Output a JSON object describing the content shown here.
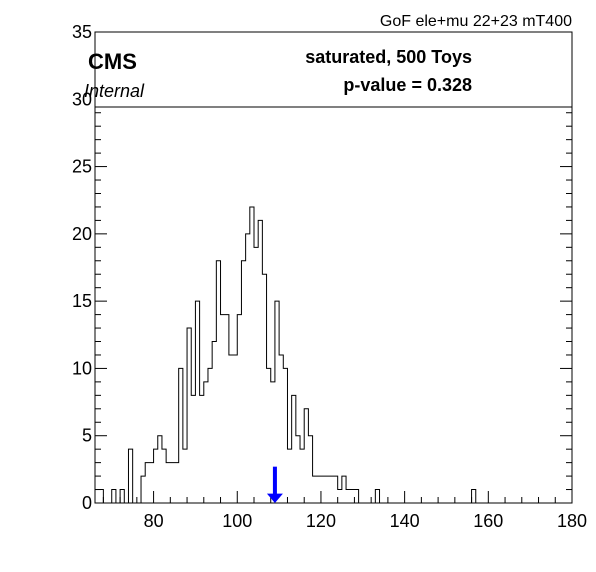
{
  "chart_data": {
    "type": "histogram",
    "title": "GoF ele+mu 22+23 mT400",
    "xlabel": "",
    "ylabel": "",
    "xlim": [
      66,
      180
    ],
    "ylim": [
      0,
      35
    ],
    "bin_width": 1,
    "bins_start": 66,
    "counts": [
      1,
      1,
      0,
      0,
      1,
      0,
      1,
      0,
      4,
      0,
      0,
      2,
      3,
      3,
      4,
      5,
      4,
      3,
      3,
      3,
      10,
      4,
      13,
      8,
      15,
      8,
      9,
      10,
      12,
      18,
      14,
      14,
      11,
      11,
      14,
      18,
      20,
      22,
      19,
      21,
      17,
      10,
      9,
      15,
      11,
      10,
      4,
      8,
      5,
      4,
      7,
      5,
      2,
      2,
      2,
      2,
      2,
      2,
      1,
      2,
      1,
      1,
      1,
      0,
      0,
      0,
      0,
      1,
      0,
      0,
      0,
      0,
      0,
      0,
      0,
      0,
      0,
      0,
      0,
      0,
      0,
      0,
      0,
      0,
      0,
      0,
      0,
      0,
      0,
      0,
      1,
      0,
      0,
      0,
      0,
      0,
      0,
      0,
      0,
      0,
      0,
      0,
      0,
      0,
      0,
      0,
      0,
      0,
      0,
      0,
      0,
      0,
      0,
      0
    ],
    "observed_value": 109,
    "xticks": [
      80,
      100,
      120,
      140,
      160,
      180
    ],
    "yticks": [
      0,
      5,
      10,
      15,
      20,
      25,
      30,
      35
    ],
    "legend": {
      "experiment": "CMS",
      "status": "Internal",
      "line1": "saturated, 500 Toys",
      "line2": "p-value = 0.328"
    },
    "colors": {
      "histogram": "#000000",
      "arrow": "#0000ff"
    }
  }
}
